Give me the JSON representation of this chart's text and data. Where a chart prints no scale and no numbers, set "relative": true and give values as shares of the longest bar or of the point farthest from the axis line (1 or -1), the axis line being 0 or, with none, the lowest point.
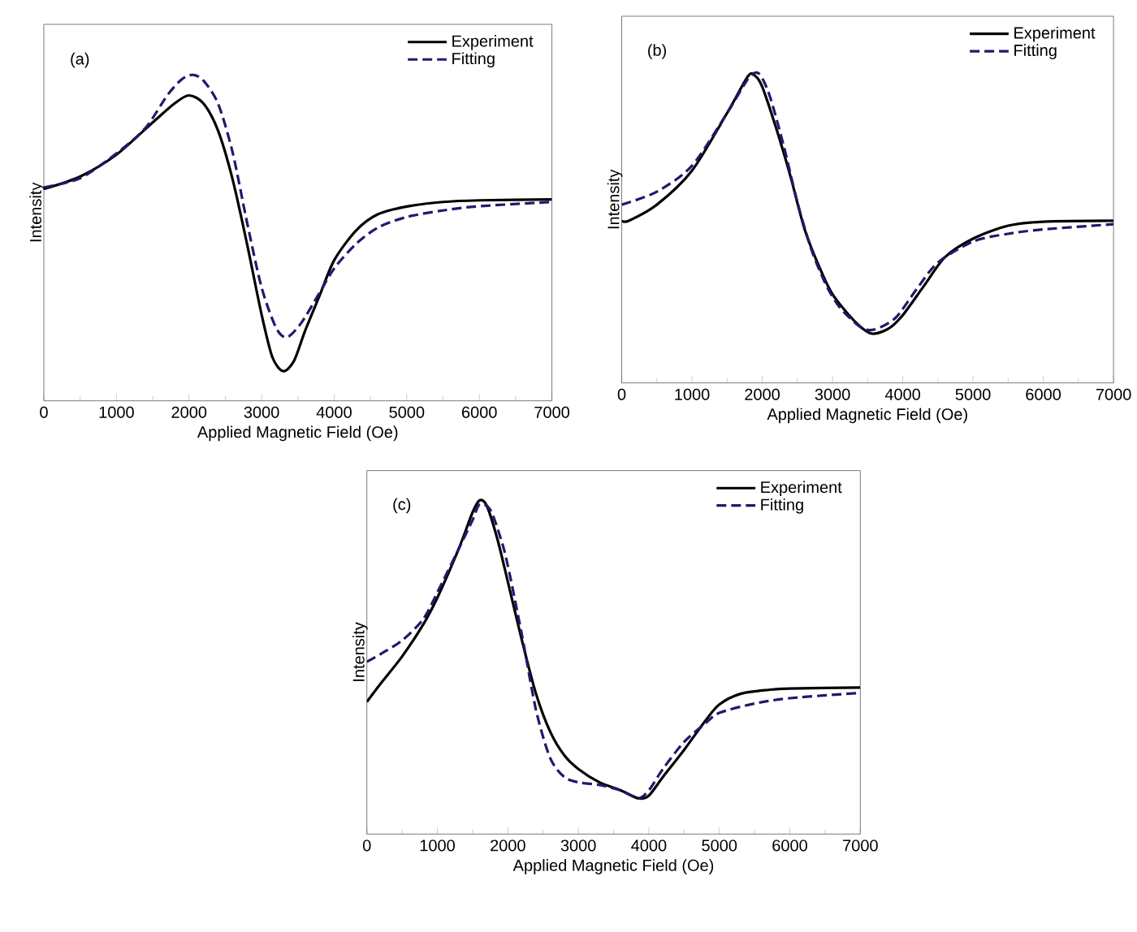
{
  "chart_data": [
    {
      "type": "line",
      "relative": true,
      "xlabel": "Applied Magnetic Field (Oe)",
      "ylabel": "Intensity",
      "annotations": [
        "(a)"
      ],
      "xlim": [
        0,
        7000
      ],
      "xticks": [
        0,
        1000,
        2000,
        3000,
        4000,
        5000,
        6000,
        7000
      ],
      "tick_labels": "x",
      "legend": "top right",
      "series": [
        {
          "name": "Experiment",
          "color": "#000000",
          "line_style": "solid",
          "x": [
            0,
            500,
            1000,
            1500,
            1800,
            2000,
            2200,
            2400,
            2600,
            2800,
            3000,
            3150,
            3300,
            3450,
            3600,
            3800,
            4000,
            4300,
            4600,
            5000,
            5500,
            6000,
            7000
          ],
          "values": [
            0.65,
            0.688,
            0.755,
            0.854,
            0.912,
            0.937,
            0.912,
            0.829,
            0.68,
            0.481,
            0.265,
            0.133,
            0.091,
            0.124,
            0.215,
            0.323,
            0.431,
            0.522,
            0.572,
            0.596,
            0.61,
            0.615,
            0.618
          ]
        },
        {
          "name": "Fitting",
          "color": "#1f1a6e",
          "line_style": "dashed",
          "x": [
            0,
            500,
            1000,
            1400,
            1700,
            1900,
            2050,
            2200,
            2400,
            2600,
            2800,
            3000,
            3200,
            3350,
            3550,
            3800,
            4000,
            4300,
            4600,
            5000,
            5500,
            6000,
            7000
          ],
          "values": [
            0.655,
            0.683,
            0.759,
            0.837,
            0.937,
            0.986,
            1,
            0.982,
            0.912,
            0.763,
            0.547,
            0.348,
            0.224,
            0.195,
            0.24,
            0.332,
            0.406,
            0.481,
            0.531,
            0.564,
            0.584,
            0.597,
            0.61
          ]
        }
      ]
    },
    {
      "type": "line",
      "relative": true,
      "xlabel": "Applied Magnetic Field (Oe)",
      "ylabel": "Intensity",
      "annotations": [
        "(b)"
      ],
      "xlim": [
        0,
        7000
      ],
      "xticks": [
        0,
        1000,
        2000,
        3000,
        4000,
        5000,
        6000,
        7000
      ],
      "tick_labels": "x",
      "legend": "top right",
      "series": [
        {
          "name": "Experiment",
          "color": "#000000",
          "line_style": "solid",
          "x": [
            0,
            100,
            500,
            1000,
            1500,
            1800,
            1900,
            2000,
            2200,
            2400,
            2600,
            2800,
            3000,
            3300,
            3550,
            3800,
            4000,
            4300,
            4600,
            5000,
            5500,
            6000,
            7000
          ],
          "values": [
            0.524,
            0.524,
            0.576,
            0.686,
            0.872,
            0.992,
            0.992,
            0.957,
            0.822,
            0.669,
            0.499,
            0.381,
            0.287,
            0.203,
            0.16,
            0.176,
            0.219,
            0.313,
            0.406,
            0.466,
            0.508,
            0.521,
            0.524
          ]
        },
        {
          "name": "Fitting",
          "color": "#1f1a6e",
          "line_style": "dashed",
          "x": [
            0,
            500,
            1000,
            1500,
            1800,
            1950,
            2100,
            2300,
            2500,
            2700,
            2900,
            3100,
            3400,
            3600,
            3900,
            4200,
            4500,
            5000,
            5500,
            6000,
            7000
          ],
          "values": [
            0.576,
            0.618,
            0.702,
            0.872,
            0.983,
            1,
            0.932,
            0.771,
            0.584,
            0.431,
            0.321,
            0.245,
            0.18,
            0.173,
            0.211,
            0.304,
            0.389,
            0.457,
            0.482,
            0.496,
            0.513
          ]
        }
      ]
    },
    {
      "type": "line",
      "relative": true,
      "xlabel": "Applied Magnetic Field (Oe)",
      "ylabel": "Intensity",
      "annotations": [
        "(c)"
      ],
      "xlim": [
        0,
        7000
      ],
      "xticks": [
        0,
        1000,
        2000,
        3000,
        4000,
        5000,
        6000,
        7000
      ],
      "tick_labels": "x",
      "legend": "top right",
      "series": [
        {
          "name": "Experiment",
          "color": "#000000",
          "line_style": "solid",
          "x": [
            0,
            200,
            500,
            800,
            1000,
            1300,
            1500,
            1600,
            1700,
            1850,
            2000,
            2200,
            2400,
            2600,
            2800,
            3000,
            3300,
            3600,
            3850,
            4000,
            4200,
            4500,
            4800,
            5000,
            5300,
            5700,
            6000,
            7000
          ],
          "values": [
            0.396,
            0.452,
            0.532,
            0.628,
            0.708,
            0.853,
            0.964,
            1,
            0.984,
            0.885,
            0.756,
            0.58,
            0.42,
            0.307,
            0.236,
            0.195,
            0.155,
            0.131,
            0.107,
            0.115,
            0.171,
            0.252,
            0.339,
            0.388,
            0.42,
            0.432,
            0.436,
            0.439
          ]
        },
        {
          "name": "Fitting",
          "color": "#1f1a6e",
          "line_style": "dashed",
          "x": [
            0,
            200,
            500,
            800,
            1000,
            1300,
            1500,
            1600,
            1750,
            1900,
            2000,
            2200,
            2400,
            2600,
            2800,
            3000,
            3300,
            3600,
            3850,
            4000,
            4200,
            4500,
            4800,
            5000,
            5500,
            6000,
            7000
          ],
          "values": [
            0.516,
            0.54,
            0.58,
            0.644,
            0.724,
            0.853,
            0.941,
            0.988,
            0.972,
            0.885,
            0.804,
            0.596,
            0.371,
            0.228,
            0.171,
            0.155,
            0.147,
            0.131,
            0.107,
            0.131,
            0.195,
            0.276,
            0.331,
            0.363,
            0.391,
            0.407,
            0.423
          ]
        }
      ]
    }
  ]
}
